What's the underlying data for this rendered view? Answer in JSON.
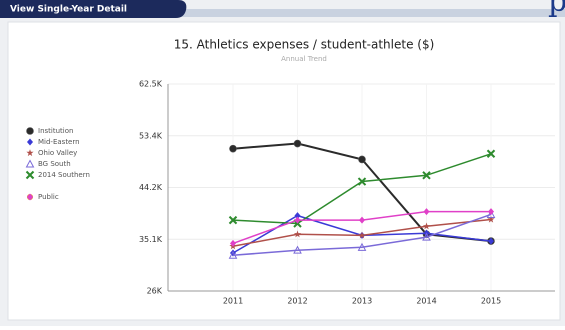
{
  "ui": {
    "tab": "View Single-Year Detail",
    "cut_text": "p"
  },
  "chart_data": {
    "type": "line",
    "title": "15. Athletics expenses / student-athlete ($)",
    "subtitle": "Annual Trend",
    "categories": [
      "2011",
      "2012",
      "2013",
      "2014",
      "2015"
    ],
    "ylim": [
      26000,
      62500
    ],
    "yticks": [
      {
        "value": 26000,
        "label": "26K"
      },
      {
        "value": 35125,
        "label": "35.1K"
      },
      {
        "value": 44250,
        "label": "44.2K"
      },
      {
        "value": 53375,
        "label": "53.4K"
      },
      {
        "value": 62500,
        "label": "62.5K"
      }
    ],
    "grid": true,
    "legend": "left",
    "series": [
      {
        "name": "Institution",
        "color": "#2b2b2b",
        "marker": "circle",
        "values": [
          51100,
          52000,
          49200,
          36000,
          34800
        ]
      },
      {
        "name": "Mid-Eastern",
        "color": "#3a3ad6",
        "marker": "diamond",
        "values": [
          32700,
          39300,
          35800,
          36200,
          34800
        ]
      },
      {
        "name": "Ohio Valley",
        "color": "#b0504a",
        "marker": "star",
        "values": [
          33900,
          36000,
          35800,
          37400,
          38600
        ]
      },
      {
        "name": "BG South",
        "color": "#7a6ad8",
        "marker": "triangle",
        "values": [
          32300,
          33200,
          33700,
          35500,
          39500
        ]
      },
      {
        "name": "2014 Southern",
        "color": "#2e8b2e",
        "marker": "x",
        "values": [
          38500,
          37900,
          45300,
          46400,
          50200
        ]
      },
      {
        "name": "Public",
        "color": "#e040c8",
        "marker": "diamond",
        "values": [
          34400,
          38500,
          38500,
          40000,
          40000
        ]
      }
    ]
  }
}
